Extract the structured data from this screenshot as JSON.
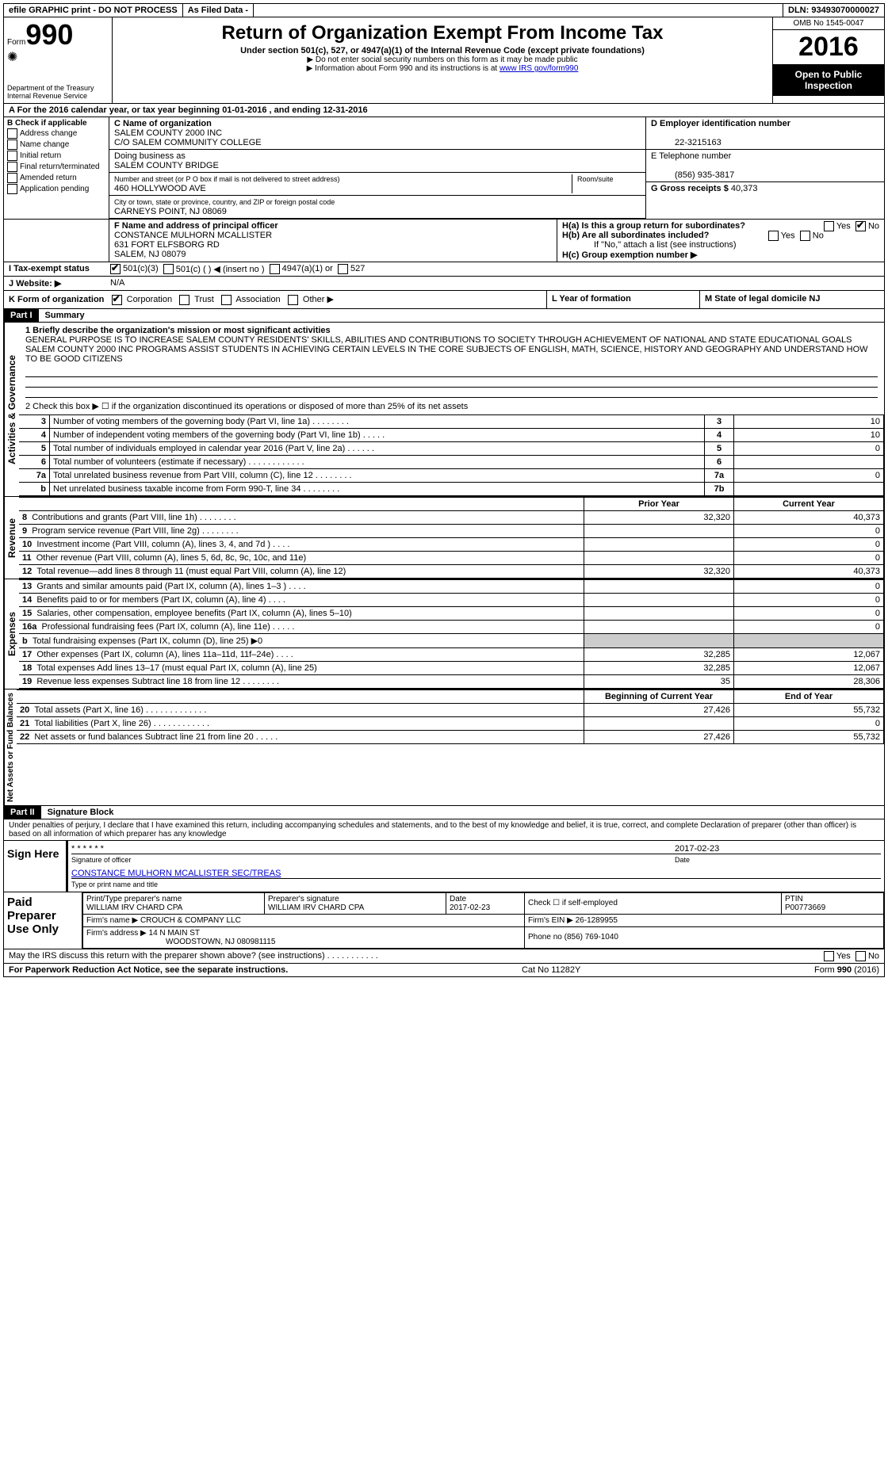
{
  "topbar": {
    "efile": "efile GRAPHIC print - DO NOT PROCESS",
    "asfiled": "As Filed Data -",
    "dln": "DLN: 93493070000027"
  },
  "header": {
    "form_word": "Form",
    "form_num": "990",
    "dept": "Department of the Treasury\nInternal Revenue Service",
    "title": "Return of Organization Exempt From Income Tax",
    "subtitle": "Under section 501(c), 527, or 4947(a)(1) of the Internal Revenue Code (except private foundations)",
    "note1": "▶ Do not enter social security numbers on this form as it may be made public",
    "note2_pre": "▶ Information about Form 990 and its instructions is at ",
    "note2_link": "www IRS gov/form990",
    "omb": "OMB No 1545-0047",
    "year": "2016",
    "inspect": "Open to Public Inspection"
  },
  "row_a": "A  For the 2016 calendar year, or tax year beginning 01-01-2016   , and ending 12-31-2016",
  "section_b": {
    "title": "B Check if applicable",
    "items": [
      "Address change",
      "Name change",
      "Initial return",
      "Final return/terminated",
      "Amended return",
      "Application pending"
    ]
  },
  "section_c": {
    "label": "C Name of organization",
    "name": "SALEM COUNTY 2000 INC",
    "co": "C/O SALEM COMMUNITY COLLEGE",
    "dba_label": "Doing business as",
    "dba": "SALEM COUNTY BRIDGE",
    "street_label": "Number and street (or P O  box if mail is not delivered to street address)",
    "room_label": "Room/suite",
    "street": "460 HOLLYWOOD AVE",
    "city_label": "City or town, state or province, country, and ZIP or foreign postal code",
    "city": "CARNEYS POINT, NJ  08069"
  },
  "section_d": {
    "label": "D Employer identification number",
    "value": "22-3215163"
  },
  "section_e": {
    "label": "E Telephone number",
    "value": "(856) 935-3817"
  },
  "section_g": {
    "label": "G Gross receipts $",
    "value": "40,373"
  },
  "section_f": {
    "label": "F  Name and address of principal officer",
    "name": "CONSTANCE MULHORN MCALLISTER",
    "street": "631 FORT ELFSBORG RD",
    "city": "SALEM, NJ  08079"
  },
  "section_h": {
    "a": "H(a)  Is this a group return for subordinates?",
    "b": "H(b)  Are all subordinates included?",
    "b_note": "If \"No,\" attach a list  (see instructions)",
    "c": "H(c)  Group exemption number ▶",
    "yes": "Yes",
    "no": "No"
  },
  "row_i": {
    "label": "I  Tax-exempt status",
    "opts": [
      "501(c)(3)",
      "501(c) (  ) ◀ (insert no )",
      "4947(a)(1) or",
      "527"
    ]
  },
  "row_j": {
    "label": "J  Website: ▶",
    "value": "N/A"
  },
  "row_k": {
    "label": "K Form of organization",
    "opts": [
      "Corporation",
      "Trust",
      "Association",
      "Other ▶"
    ]
  },
  "row_l": "L Year of formation",
  "row_m": "M State of legal domicile  NJ",
  "part1": {
    "header": "Part I",
    "title": "Summary",
    "q1_label": "1  Briefly describe the organization's mission or most significant activities",
    "mission": "GENERAL PURPOSE IS TO INCREASE SALEM COUNTY RESIDENTS' SKILLS, ABILITIES AND CONTRIBUTIONS TO SOCIETY THROUGH ACHIEVEMENT OF NATIONAL AND STATE EDUCATIONAL GOALS  SALEM COUNTY 2000 INC  PROGRAMS ASSIST STUDENTS IN ACHIEVING CERTAIN LEVELS IN THE CORE SUBJECTS OF ENGLISH, MATH, SCIENCE, HISTORY AND GEOGRAPHY AND UNDERSTAND HOW TO BE GOOD CITIZENS",
    "q2": "2   Check this box ▶ ☐ if the organization discontinued its operations or disposed of more than 25% of its net assets",
    "rows_gov": [
      {
        "n": "3",
        "t": "Number of voting members of the governing body (Part VI, line 1a)  .  .  .  .  .  .  .  .",
        "l": "3",
        "v": "10"
      },
      {
        "n": "4",
        "t": "Number of independent voting members of the governing body (Part VI, line 1b)  .  .  .  .  .",
        "l": "4",
        "v": "10"
      },
      {
        "n": "5",
        "t": "Total number of individuals employed in calendar year 2016 (Part V, line 2a)  .  .  .  .  .  .",
        "l": "5",
        "v": "0"
      },
      {
        "n": "6",
        "t": "Total number of volunteers (estimate if necessary)  .  .  .  .  .  .  .  .  .  .  .  .",
        "l": "6",
        "v": ""
      },
      {
        "n": "7a",
        "t": "Total unrelated business revenue from Part VIII, column (C), line 12  .  .  .  .  .  .  .  .",
        "l": "7a",
        "v": "0"
      },
      {
        "n": "b",
        "t": "Net unrelated business taxable income from Form 990-T, line 34   .  .  .  .  .  .  .  .",
        "l": "7b",
        "v": ""
      }
    ],
    "col_prior": "Prior Year",
    "col_current": "Current Year",
    "side_gov": "Activities & Governance",
    "side_rev": "Revenue",
    "side_exp": "Expenses",
    "side_net": "Net Assets or Fund Balances",
    "rows_rev": [
      {
        "n": "8",
        "t": "Contributions and grants (Part VIII, line 1h)  .  .  .  .  .  .  .  .",
        "p": "32,320",
        "c": "40,373"
      },
      {
        "n": "9",
        "t": "Program service revenue (Part VIII, line 2g)   .  .  .  .  .  .  .  .",
        "p": "",
        "c": "0"
      },
      {
        "n": "10",
        "t": "Investment income (Part VIII, column (A), lines 3, 4, and 7d )  .  .  .  .",
        "p": "",
        "c": "0"
      },
      {
        "n": "11",
        "t": "Other revenue (Part VIII, column (A), lines 5, 6d, 8c, 9c, 10c, and 11e)",
        "p": "",
        "c": "0"
      },
      {
        "n": "12",
        "t": "Total revenue—add lines 8 through 11 (must equal Part VIII, column (A), line 12)",
        "p": "32,320",
        "c": "40,373"
      }
    ],
    "rows_exp": [
      {
        "n": "13",
        "t": "Grants and similar amounts paid (Part IX, column (A), lines 1–3 )  .  .  .  .",
        "p": "",
        "c": "0"
      },
      {
        "n": "14",
        "t": "Benefits paid to or for members (Part IX, column (A), line 4)  .  .  .  .",
        "p": "",
        "c": "0"
      },
      {
        "n": "15",
        "t": "Salaries, other compensation, employee benefits (Part IX, column (A), lines 5–10)",
        "p": "",
        "c": "0"
      },
      {
        "n": "16a",
        "t": "Professional fundraising fees (Part IX, column (A), line 11e)  .  .  .  .  .",
        "p": "",
        "c": "0"
      },
      {
        "n": "b",
        "t": "Total fundraising expenses (Part IX, column (D), line 25) ▶0",
        "p": null,
        "c": null
      },
      {
        "n": "17",
        "t": "Other expenses (Part IX, column (A), lines 11a–11d, 11f–24e)  .  .  .  .",
        "p": "32,285",
        "c": "12,067"
      },
      {
        "n": "18",
        "t": "Total expenses  Add lines 13–17 (must equal Part IX, column (A), line 25)",
        "p": "32,285",
        "c": "12,067"
      },
      {
        "n": "19",
        "t": "Revenue less expenses  Subtract line 18 from line 12  .  .  .  .  .  .  .  .",
        "p": "35",
        "c": "28,306"
      }
    ],
    "col_begin": "Beginning of Current Year",
    "col_end": "End of Year",
    "rows_net": [
      {
        "n": "20",
        "t": "Total assets (Part X, line 16)  .  .  .  .  .  .  .  .  .  .  .  .  .",
        "p": "27,426",
        "c": "55,732"
      },
      {
        "n": "21",
        "t": "Total liabilities (Part X, line 26)  .  .  .  .  .  .  .  .  .  .  .  .",
        "p": "",
        "c": "0"
      },
      {
        "n": "22",
        "t": "Net assets or fund balances  Subtract line 21 from line 20  .  .  .  .  .",
        "p": "27,426",
        "c": "55,732"
      }
    ]
  },
  "part2": {
    "header": "Part II",
    "title": "Signature Block",
    "perjury": "Under penalties of perjury, I declare that I have examined this return, including accompanying schedules and statements, and to the best of my knowledge and belief, it is true, correct, and complete  Declaration of preparer (other than officer) is based on all information of which preparer has any knowledge",
    "sign_here": "Sign Here",
    "sig_stars": "* * * * * *",
    "sig_label": "Signature of officer",
    "sig_date": "2017-02-23",
    "date_label": "Date",
    "officer": "CONSTANCE MULHORN MCALLISTER  SEC/TREAS",
    "officer_label": "Type or print name and title",
    "paid": "Paid Preparer Use Only",
    "prep_name_label": "Print/Type preparer's name",
    "prep_name": "WILLIAM IRV CHARD CPA",
    "prep_sig_label": "Preparer's signature",
    "prep_sig": "WILLIAM IRV CHARD CPA",
    "prep_date": "2017-02-23",
    "check_label": "Check ☐ if self-employed",
    "ptin_label": "PTIN",
    "ptin": "P00773669",
    "firm_name_label": "Firm's name    ▶",
    "firm_name": "CROUCH & COMPANY LLC",
    "firm_ein_label": "Firm's EIN ▶",
    "firm_ein": "26-1289955",
    "firm_addr_label": "Firm's address ▶",
    "firm_addr1": "14 N MAIN ST",
    "firm_addr2": "WOODSTOWN, NJ  080981115",
    "phone_label": "Phone no",
    "phone": "(856) 769-1040"
  },
  "footer": {
    "q": "May the IRS discuss this return with the preparer shown above? (see instructions)   .  .  .  .  .  .  .  .  .  .  .",
    "yes": "Yes",
    "no": "No",
    "paperwork": "For Paperwork Reduction Act Notice, see the separate instructions.",
    "cat": "Cat  No  11282Y",
    "form": "Form 990 (2016)"
  }
}
